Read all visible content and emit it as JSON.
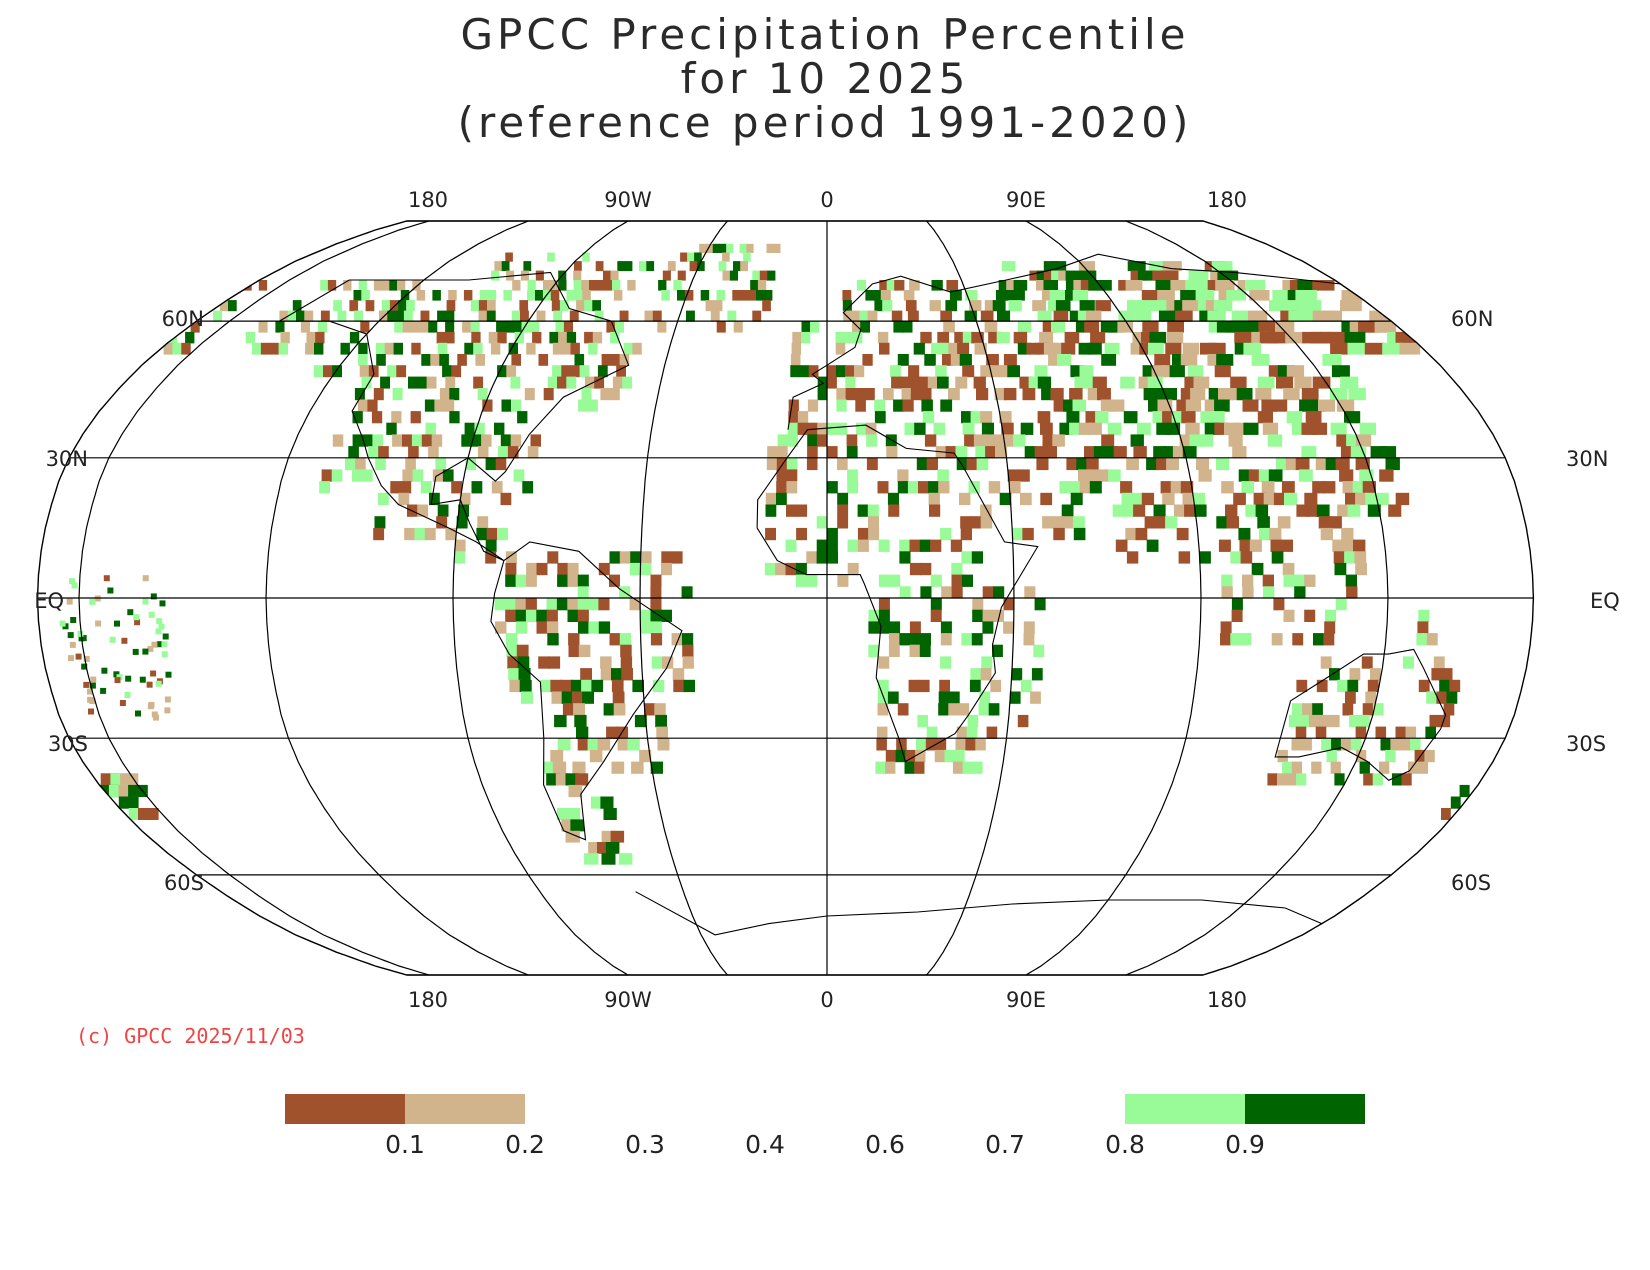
{
  "title": {
    "line1": "GPCC Precipitation Percentile",
    "line2": "for 10 2025",
    "line3": "(reference period 1991-2020)"
  },
  "map": {
    "projection": "Robinson",
    "lon_labels_top": [
      "180",
      "90W",
      "0",
      "90E",
      "180"
    ],
    "lon_labels_bottom": [
      "180",
      "90W",
      "0",
      "90E",
      "180"
    ],
    "lat_labels": [
      "60N",
      "30N",
      "EQ",
      "30S",
      "60S"
    ],
    "gridlines": true
  },
  "credit": "(c) GPCC 2025/11/03",
  "legend": {
    "boxes": [
      {
        "range": "below 0.1",
        "color": "#a0522d"
      },
      {
        "range": "0.1-0.2",
        "color": "#d2b48c"
      },
      {
        "range": "0.8-0.9",
        "color": "#98fb98"
      },
      {
        "range": "above 0.9",
        "color": "#006400"
      }
    ],
    "ticks": [
      "0.1",
      "0.2",
      "0.3",
      "0.4",
      "0.6",
      "0.7",
      "0.8",
      "0.9"
    ]
  },
  "colors": {
    "very_dry": "#a0522d",
    "dry": "#d2b48c",
    "wet": "#98fb98",
    "very_wet": "#006400"
  }
}
